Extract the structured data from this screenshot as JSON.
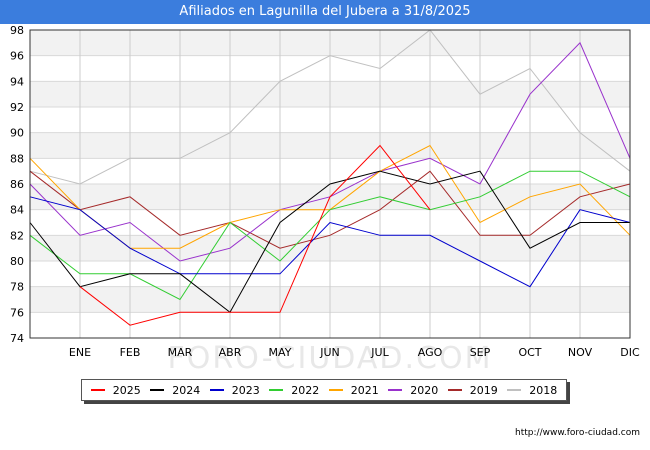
{
  "chart_data": {
    "type": "line",
    "title": "Afiliados en Lagunilla del Jubera a 31/8/2025",
    "xlabel": "",
    "ylabel": "",
    "categories": [
      "",
      "ENE",
      "FEB",
      "MAR",
      "ABR",
      "MAY",
      "JUN",
      "JUL",
      "AGO",
      "SEP",
      "OCT",
      "NOV",
      "DIC"
    ],
    "yticks": [
      74,
      76,
      78,
      80,
      82,
      84,
      86,
      88,
      90,
      92,
      94,
      96,
      98
    ],
    "ylim": [
      74,
      98
    ],
    "grid": true,
    "legend_position": "bottom",
    "series": [
      {
        "name": "2018",
        "color": "#c0c0c0",
        "values": [
          87,
          86,
          88,
          88,
          90,
          94,
          96,
          95,
          98,
          93,
          95,
          90,
          87
        ]
      },
      {
        "name": "2019",
        "color": "#a52a2a",
        "values": [
          87,
          84,
          85,
          82,
          83,
          81,
          82,
          84,
          87,
          82,
          82,
          85,
          86
        ]
      },
      {
        "name": "2020",
        "color": "#9932cc",
        "values": [
          86,
          82,
          83,
          80,
          81,
          84,
          85,
          87,
          88,
          86,
          93,
          97,
          88
        ]
      },
      {
        "name": "2021",
        "color": "#ffa500",
        "values": [
          88,
          84,
          81,
          81,
          83,
          84,
          84,
          87,
          89,
          83,
          85,
          86,
          82
        ]
      },
      {
        "name": "2022",
        "color": "#32cd32",
        "values": [
          82,
          79,
          79,
          77,
          83,
          80,
          84,
          85,
          84,
          85,
          87,
          87,
          85
        ]
      },
      {
        "name": "2023",
        "color": "#0000cd",
        "values": [
          85,
          84,
          81,
          79,
          79,
          79,
          83,
          82,
          82,
          80,
          78,
          84,
          83
        ]
      },
      {
        "name": "2024",
        "color": "#000000",
        "values": [
          83,
          78,
          79,
          79,
          76,
          83,
          86,
          87,
          86,
          87,
          81,
          83,
          83
        ]
      },
      {
        "name": "2025",
        "color": "#ff0000",
        "values": [
          null,
          78,
          75,
          76,
          76,
          76,
          85,
          89,
          84,
          null,
          null,
          null,
          null
        ]
      }
    ],
    "legend_order": [
      "2025",
      "2024",
      "2023",
      "2022",
      "2021",
      "2020",
      "2019",
      "2018"
    ]
  },
  "watermark": "FORO-CIUDAD.COM",
  "credit": "http://www.foro-ciudad.com"
}
